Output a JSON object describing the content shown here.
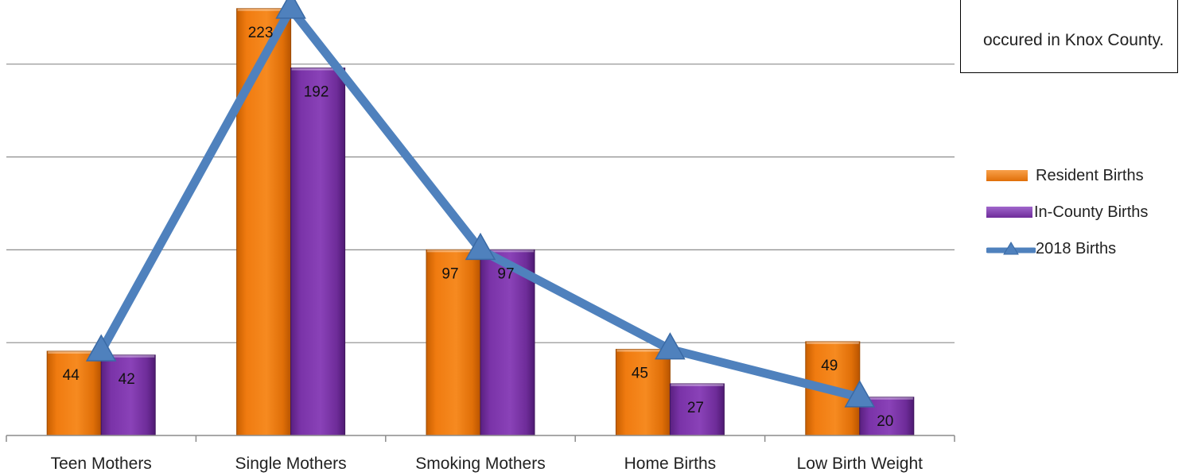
{
  "chart_data": {
    "type": "bar",
    "categories": [
      "Teen Mothers",
      "Single Mothers",
      "Smoking Mothers",
      "Home Births",
      "Low Birth Weight"
    ],
    "series": [
      {
        "name": "Resident Births",
        "kind": "bar",
        "color": "#f07b10",
        "values": [
          44,
          223,
          97,
          45,
          49
        ]
      },
      {
        "name": "In-County Births",
        "kind": "bar",
        "color": "#7a33a8",
        "values": [
          42,
          192,
          97,
          27,
          20
        ]
      },
      {
        "name": "2018 Births",
        "kind": "line",
        "marker": "triangle",
        "color": "#4f81bd",
        "values": [
          44,
          223,
          97,
          45,
          20
        ]
      }
    ],
    "ylim": [
      0,
      225
    ],
    "grid": true,
    "legend": "right"
  },
  "callout": {
    "text": "occured in Knox County."
  },
  "legend": {
    "items": [
      {
        "label": "Resident Births"
      },
      {
        "label": "In-County Births"
      },
      {
        "label": "2018 Births"
      }
    ]
  }
}
